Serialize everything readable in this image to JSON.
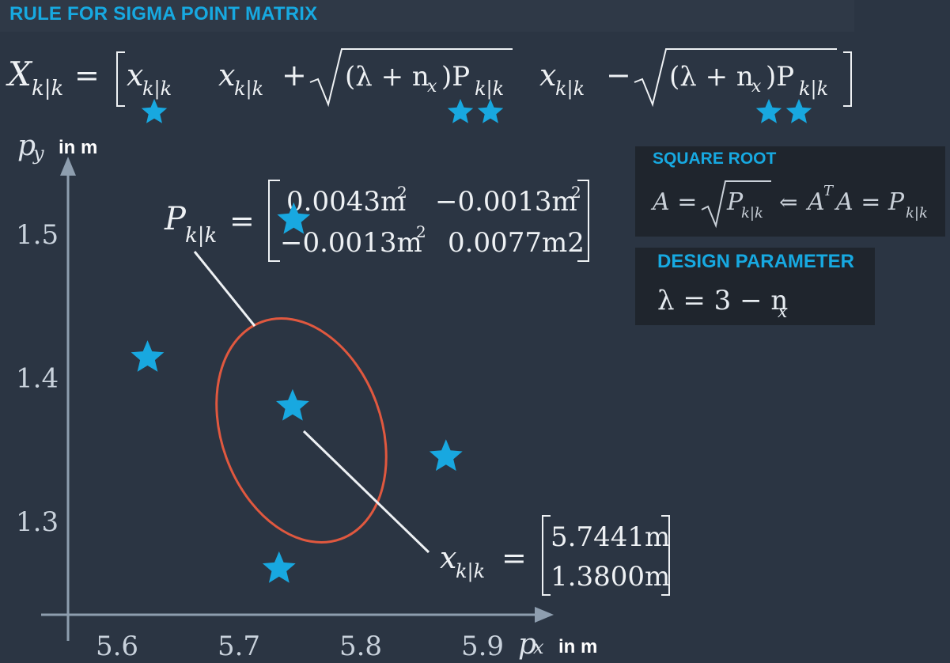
{
  "header": {
    "title": "RULE FOR SIGMA POINT MATRIX"
  },
  "sigma_formula": {
    "lhs": "X",
    "lhs_sub": "k|k",
    "eq": "=",
    "x": "x",
    "sub": "k|k",
    "plus": "+",
    "minus": "−",
    "paren_expr": "(λ + n",
    "nx_sub": "x",
    "paren_close": ")P"
  },
  "axes": {
    "y_label": "p",
    "y_label_sub": "y",
    "y_unit": "in m",
    "x_label": "p",
    "x_label_sub": "x",
    "x_unit": "in m"
  },
  "chart_data": {
    "type": "scatter",
    "x_ticks": [
      "5.6",
      "5.7",
      "5.8",
      "5.9"
    ],
    "y_ticks": [
      "1.5",
      "1.4",
      "1.3"
    ],
    "xlim": [
      5.55,
      5.9
    ],
    "ylim": [
      1.26,
      1.53
    ],
    "mean": {
      "x": 5.7441,
      "y": 1.38
    },
    "sigma_points": [
      {
        "x": 5.7441,
        "y": 1.38
      },
      {
        "x": 5.745,
        "y": 1.51
      },
      {
        "x": 5.625,
        "y": 1.414
      },
      {
        "x": 5.87,
        "y": 1.345
      },
      {
        "x": 5.733,
        "y": 1.267
      }
    ]
  },
  "covariance": {
    "lhs": "P",
    "lhs_sub": "k|k",
    "eq": "=",
    "m11": "0.0043m",
    "m12": "−0.0013m",
    "m21": "−0.0013m",
    "m22": "0.0077m2",
    "sup": "2"
  },
  "state_vector": {
    "lhs": "x",
    "lhs_sub": "k|k",
    "eq": "=",
    "v1": "5.7441m",
    "v2": "1.3800m"
  },
  "square_root_box": {
    "title": "SQUARE ROOT",
    "a_eq": "A =",
    "p": "P",
    "p_sub": "k|k",
    "arrow": "⇐",
    "ata": "A",
    "t_sup": "T",
    "a2": "A = P"
  },
  "design_box": {
    "title": "DESIGN PARAMETER",
    "formula": "λ = 3 − n",
    "sub": "x"
  },
  "colors": {
    "accent": "#17a9e1",
    "star": "#18a8e0",
    "ellipse": "#e0583f",
    "axis": "#8e9eaf"
  }
}
